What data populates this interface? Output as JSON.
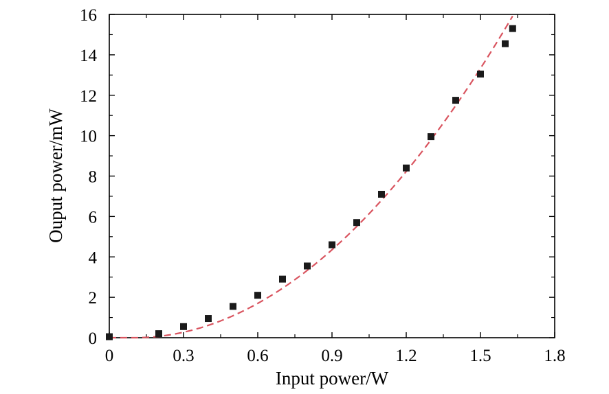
{
  "chart_data": {
    "type": "scatter",
    "xlabel": "Input power/W",
    "ylabel": "Ouput power/mW",
    "xlim": [
      0,
      1.8
    ],
    "ylim": [
      0,
      16
    ],
    "xticks": [
      "0",
      "0.3",
      "0.6",
      "0.9",
      "1.2",
      "1.5",
      "1.8"
    ],
    "yticks": [
      "0",
      "2",
      "4",
      "6",
      "8",
      "10",
      "12",
      "14",
      "16"
    ],
    "grid": false,
    "series": [
      {
        "marker": "square",
        "color": "#1a1a1a",
        "x": [
          0.0,
          0.2,
          0.3,
          0.4,
          0.5,
          0.6,
          0.7,
          0.8,
          0.9,
          1.0,
          1.1,
          1.2,
          1.3,
          1.4,
          1.5,
          1.6,
          1.63
        ],
        "y": [
          0.05,
          0.2,
          0.55,
          0.95,
          1.55,
          2.1,
          2.9,
          3.55,
          4.6,
          5.7,
          7.1,
          8.4,
          9.95,
          11.75,
          13.05,
          14.55,
          15.3
        ]
      },
      {
        "line": "dashed",
        "color": "#d9545f",
        "fit_x0": 0.1,
        "fit_coef": 6.8,
        "fit_exponent": 2
      }
    ]
  }
}
